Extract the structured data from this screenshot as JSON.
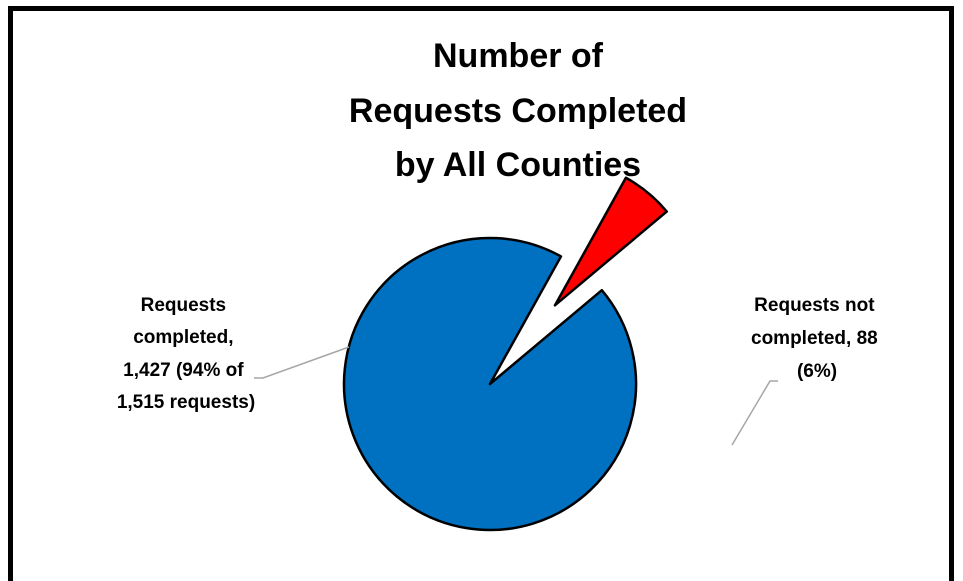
{
  "chart_data": {
    "type": "pie",
    "title_lines": [
      "Number of",
      "Requests Completed",
      "by All Counties"
    ],
    "total": 1515,
    "slices": [
      {
        "label_lines": [
          "Requests",
          "completed,",
          "1,427 (94% of",
          "1,515 requests)"
        ],
        "value": 1427,
        "percent": 94,
        "color": "#0070C0",
        "exploded": false
      },
      {
        "label_lines": [
          "Requests not",
          "completed, 88",
          "(6%)"
        ],
        "value": 88,
        "percent": 6,
        "color": "#FF0000",
        "exploded": true
      }
    ],
    "start_angle_deg": 50,
    "legend": "none",
    "leader_line_color": "#A6A6A6",
    "border_color": "#000000"
  }
}
